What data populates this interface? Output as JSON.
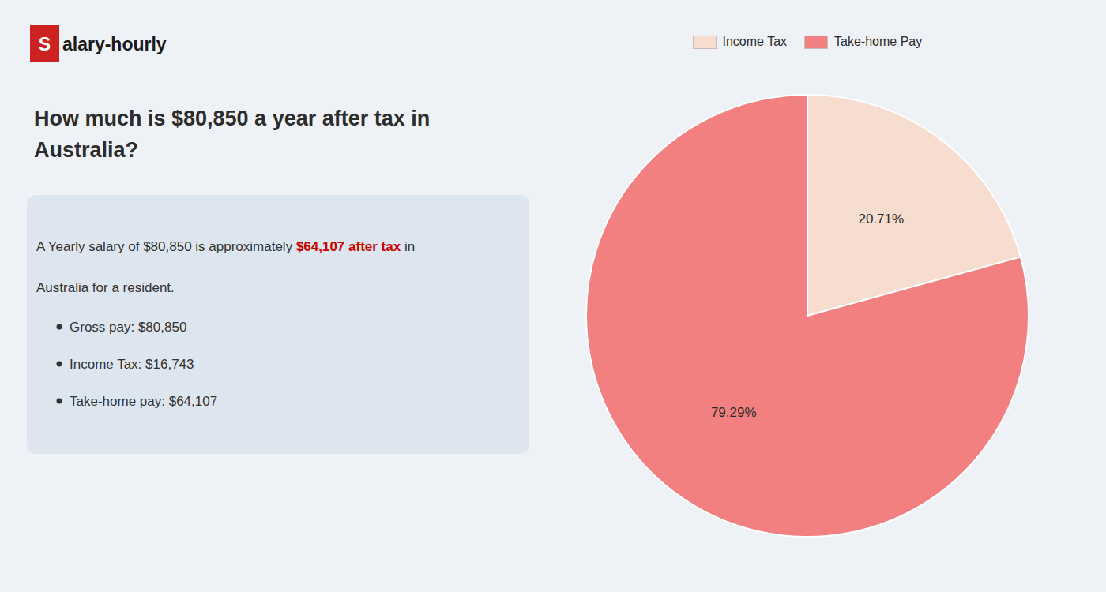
{
  "chart_data": {
    "type": "pie",
    "title": "How much is $80,850 a year after tax in\nAustralia?",
    "categories": [
      "Income Tax",
      "Take-home Pay"
    ],
    "values": [
      20.71,
      79.29
    ],
    "value_labels": [
      "20.71%",
      "79.29%"
    ],
    "colors": [
      "#f7ddd0",
      "#f28080"
    ],
    "data_labels": true,
    "legend": "top",
    "annotations": [
      {
        "text": "S"
      },
      {
        "text": "alary-hourly"
      },
      {
        "text": "A Yearly salary of $80,850 is approximately "
      },
      {
        "text": "$64,107 after tax",
        "color": "#cc0000"
      },
      {
        "text": " in"
      },
      {
        "text": "Australia for a resident."
      },
      {
        "text": "Gross pay: $80,850"
      },
      {
        "text": "Income Tax: $16,743"
      },
      {
        "text": "Take-home pay: $64,107"
      }
    ]
  }
}
